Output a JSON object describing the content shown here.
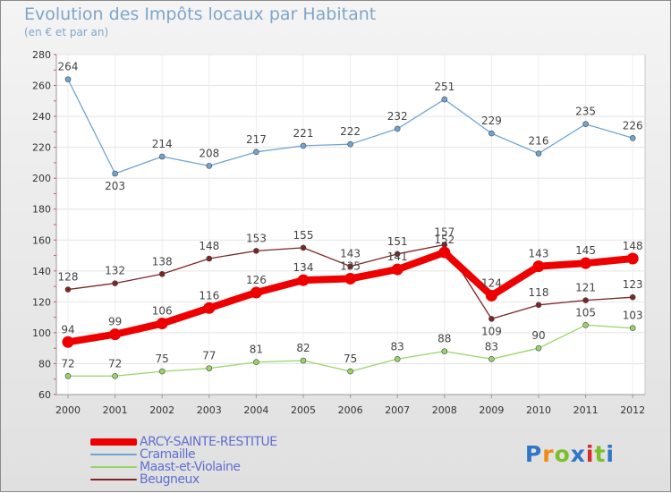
{
  "chart_data": {
    "type": "line",
    "title": "Evolution des Impôts locaux par Habitant",
    "subtitle": "(en € et par an)",
    "x": [
      "2000",
      "2001",
      "2002",
      "2003",
      "2004",
      "2005",
      "2006",
      "2007",
      "2008",
      "2009",
      "2010",
      "2011",
      "2012"
    ],
    "ylim": [
      60,
      280
    ],
    "yticks": [
      60,
      80,
      100,
      120,
      140,
      160,
      180,
      200,
      220,
      240,
      260,
      280
    ],
    "grid": true,
    "legend_position": "bottom-left",
    "series": [
      {
        "name": "ARCY-SAINTE-RESTITUE",
        "color": "#ee0000",
        "values": [
          94,
          99,
          106,
          116,
          126,
          134,
          135,
          141,
          152,
          124,
          143,
          145,
          148
        ]
      },
      {
        "name": "Cramaille",
        "color": "#6fa5d3",
        "values": [
          264,
          203,
          214,
          208,
          217,
          221,
          222,
          232,
          251,
          229,
          216,
          235,
          226
        ]
      },
      {
        "name": "Maast-et-Violaine",
        "color": "#98d468",
        "values": [
          72,
          72,
          75,
          77,
          81,
          82,
          75,
          83,
          88,
          83,
          90,
          105,
          103
        ]
      },
      {
        "name": "Beugneux",
        "color": "#7d2525",
        "values": [
          128,
          132,
          138,
          148,
          153,
          155,
          143,
          151,
          157,
          109,
          118,
          121,
          123
        ]
      }
    ]
  },
  "logo": {
    "letters": [
      "P",
      "r",
      "o",
      "x",
      "i",
      "t",
      "i"
    ],
    "colors": [
      "#2f76c6",
      "#f08b12",
      "#7bbf2a",
      "#2f76c6",
      "#d92b2b",
      "#7bbf2a",
      "#2f76c6"
    ]
  }
}
